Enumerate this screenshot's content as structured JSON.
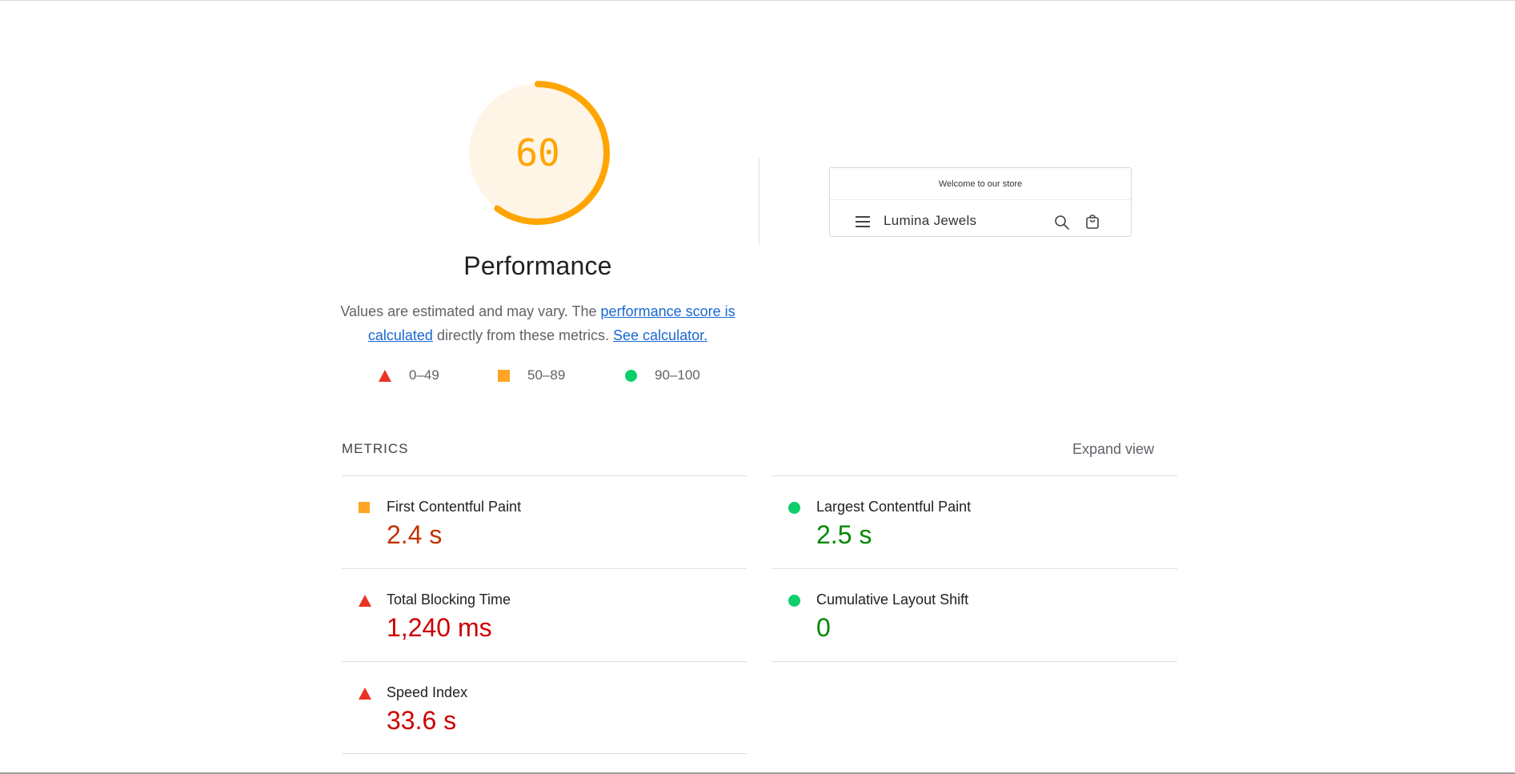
{
  "score": {
    "value": "60",
    "fraction": 0.6,
    "color": "#ffa400",
    "track_color": "#fff3e0"
  },
  "title": "Performance",
  "description": {
    "prefix": "Values are estimated and may vary. The ",
    "link1": "performance score is calculated",
    "middle": " directly from these metrics. ",
    "link2": "See calculator."
  },
  "legend": [
    {
      "shape": "triangle",
      "color": "#eb3323",
      "label": "0–49"
    },
    {
      "shape": "square",
      "color": "#ffa424",
      "label": "50–89"
    },
    {
      "shape": "circle",
      "color": "#0cce6b",
      "label": "90–100"
    }
  ],
  "screenshot": {
    "banner": "Welcome to our store",
    "brand": "Lumina Jewels",
    "icons": [
      "menu-icon",
      "search-icon",
      "cart-icon"
    ]
  },
  "metrics": {
    "heading": "METRICS",
    "expand": "Expand view",
    "items": [
      {
        "label": "First Contentful Paint",
        "value": "2.4 s",
        "rating": "average"
      },
      {
        "label": "Largest Contentful Paint",
        "value": "2.5 s",
        "rating": "pass"
      },
      {
        "label": "Total Blocking Time",
        "value": "1,240 ms",
        "rating": "fail"
      },
      {
        "label": "Cumulative Layout Shift",
        "value": "0",
        "rating": "pass"
      },
      {
        "label": "Speed Index",
        "value": "33.6 s",
        "rating": "fail"
      }
    ]
  }
}
